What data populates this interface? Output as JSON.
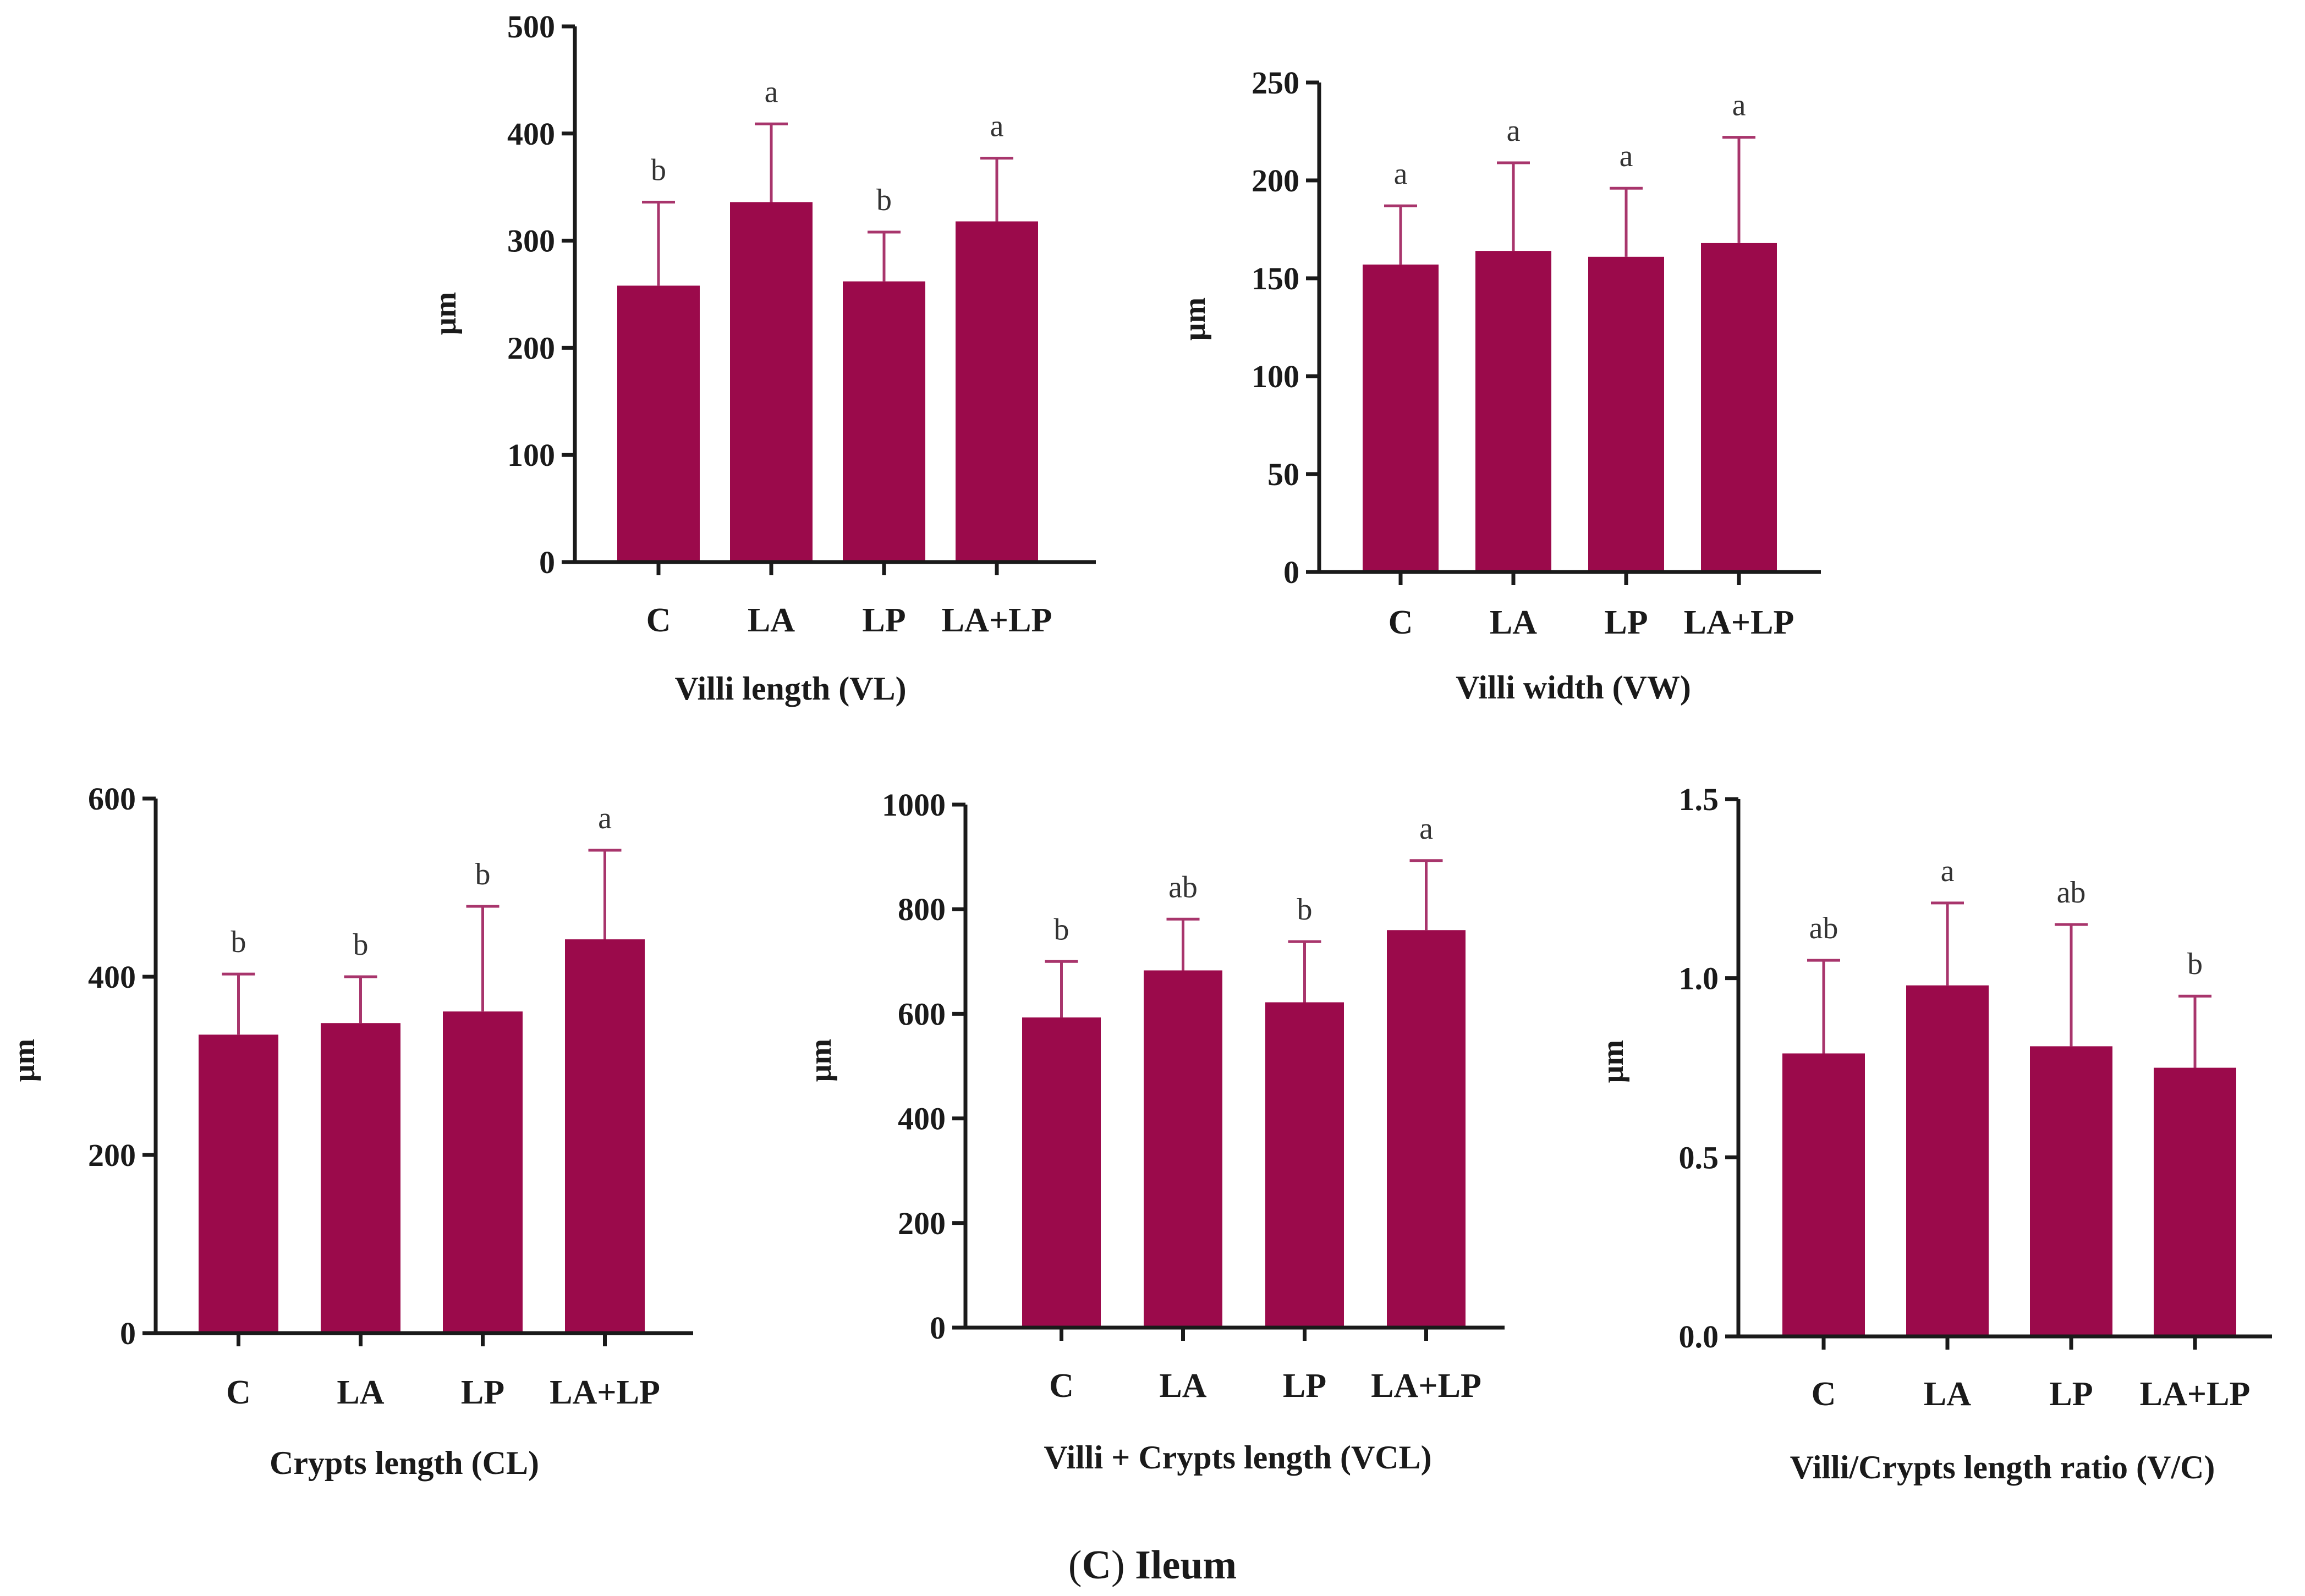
{
  "colors": {
    "bar": "#9b0a4b",
    "error": "#a8356c",
    "axis": "#1a1a1a"
  },
  "caption": {
    "prefix": "(",
    "letter": "C",
    "suffix": ")",
    "title": " Ileum"
  },
  "chart_data": [
    {
      "id": "vl",
      "type": "bar",
      "title": "Villi length (VL)",
      "xlabel": "Villi length (VL)",
      "ylabel": "μm",
      "categories": [
        "C",
        "LA",
        "LP",
        "LA+LP"
      ],
      "values": [
        258,
        336,
        262,
        318
      ],
      "errors": [
        78,
        73,
        46,
        59
      ],
      "significance": [
        "b",
        "a",
        "b",
        "a"
      ],
      "ylim": [
        0,
        500
      ],
      "yticks": [
        0,
        100,
        200,
        300,
        400,
        500
      ],
      "ytick_labels": [
        "0",
        "100",
        "200",
        "300",
        "400",
        "500"
      ]
    },
    {
      "id": "vw",
      "type": "bar",
      "title": "Villi width (VW)",
      "xlabel": "Villi width (VW)",
      "ylabel": "μm",
      "categories": [
        "C",
        "LA",
        "LP",
        "LA+LP"
      ],
      "values": [
        157,
        164,
        161,
        168
      ],
      "errors": [
        30,
        45,
        35,
        54
      ],
      "significance": [
        "a",
        "a",
        "a",
        "a"
      ],
      "ylim": [
        0,
        250
      ],
      "yticks": [
        0,
        50,
        100,
        150,
        200,
        250
      ],
      "ytick_labels": [
        "0",
        "50",
        "100",
        "150",
        "200",
        "250"
      ]
    },
    {
      "id": "cl",
      "type": "bar",
      "title": "Crypts length (CL)",
      "xlabel": "Crypts length (CL)",
      "ylabel": "μm",
      "categories": [
        "C",
        "LA",
        "LP",
        "LA+LP"
      ],
      "values": [
        335,
        348,
        361,
        442
      ],
      "errors": [
        68,
        52,
        118,
        100
      ],
      "significance": [
        "b",
        "b",
        "b",
        "a"
      ],
      "ylim": [
        0,
        600
      ],
      "yticks": [
        0,
        200,
        400,
        600
      ],
      "ytick_labels": [
        "0",
        "200",
        "400",
        "600"
      ]
    },
    {
      "id": "vcl",
      "type": "bar",
      "title": "Villi + Crypts length (VCL)",
      "xlabel": "Villi + Crypts length (VCL)",
      "ylabel": "μm",
      "categories": [
        "C",
        "LA",
        "LP",
        "LA+LP"
      ],
      "values": [
        593,
        683,
        622,
        760
      ],
      "errors": [
        107,
        98,
        116,
        133
      ],
      "significance": [
        "b",
        "ab",
        "b",
        "a"
      ],
      "ylim": [
        0,
        1000
      ],
      "yticks": [
        0,
        200,
        400,
        600,
        800,
        1000
      ],
      "ytick_labels": [
        "0",
        "200",
        "400",
        "600",
        "800",
        "1000"
      ]
    },
    {
      "id": "vc",
      "type": "bar",
      "title": "Villi/Crypts length ratio (V/C)",
      "xlabel": "Villi/Crypts length ratio (V/C)",
      "ylabel": "μm",
      "categories": [
        "C",
        "LA",
        "LP",
        "LA+LP"
      ],
      "values": [
        0.79,
        0.98,
        0.81,
        0.75
      ],
      "errors": [
        0.26,
        0.23,
        0.34,
        0.2
      ],
      "significance": [
        "ab",
        "a",
        "ab",
        "b"
      ],
      "ylim": [
        0,
        1.5
      ],
      "yticks": [
        0,
        0.5,
        1.0,
        1.5
      ],
      "ytick_labels": [
        "0.0",
        "0.5",
        "1.0",
        "1.5"
      ]
    }
  ]
}
